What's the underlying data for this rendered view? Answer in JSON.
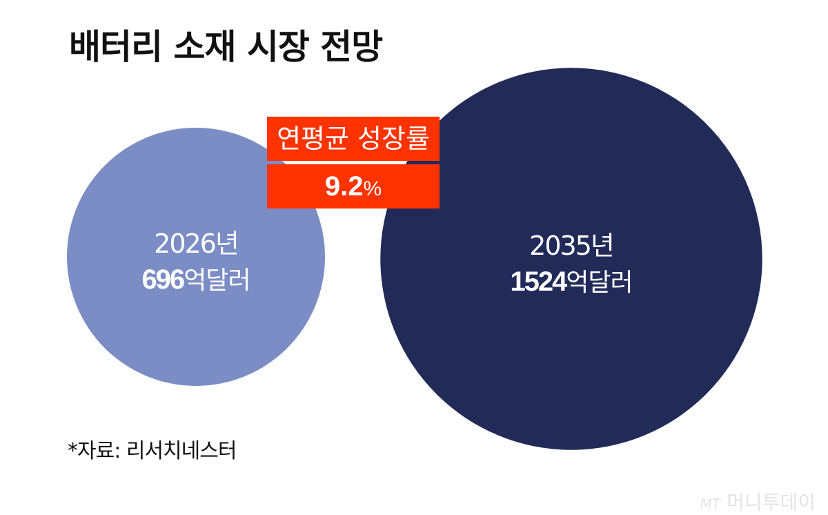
{
  "title": "배터리 소재 시장 전망",
  "chart_data": {
    "type": "bubble",
    "unit": "억달러",
    "points": [
      {
        "year": "2026년",
        "value": 696,
        "color": "#7b8dc4"
      },
      {
        "year": "2035년",
        "value": 1524,
        "color": "#222b58"
      }
    ],
    "annotation": {
      "label": "연평균 성장률",
      "value": "9.2",
      "unit": "%",
      "color": "#ff3300"
    }
  },
  "source": "*자료: 리서치네스터",
  "logo": {
    "mark": "MT",
    "name": "머니투데이"
  }
}
